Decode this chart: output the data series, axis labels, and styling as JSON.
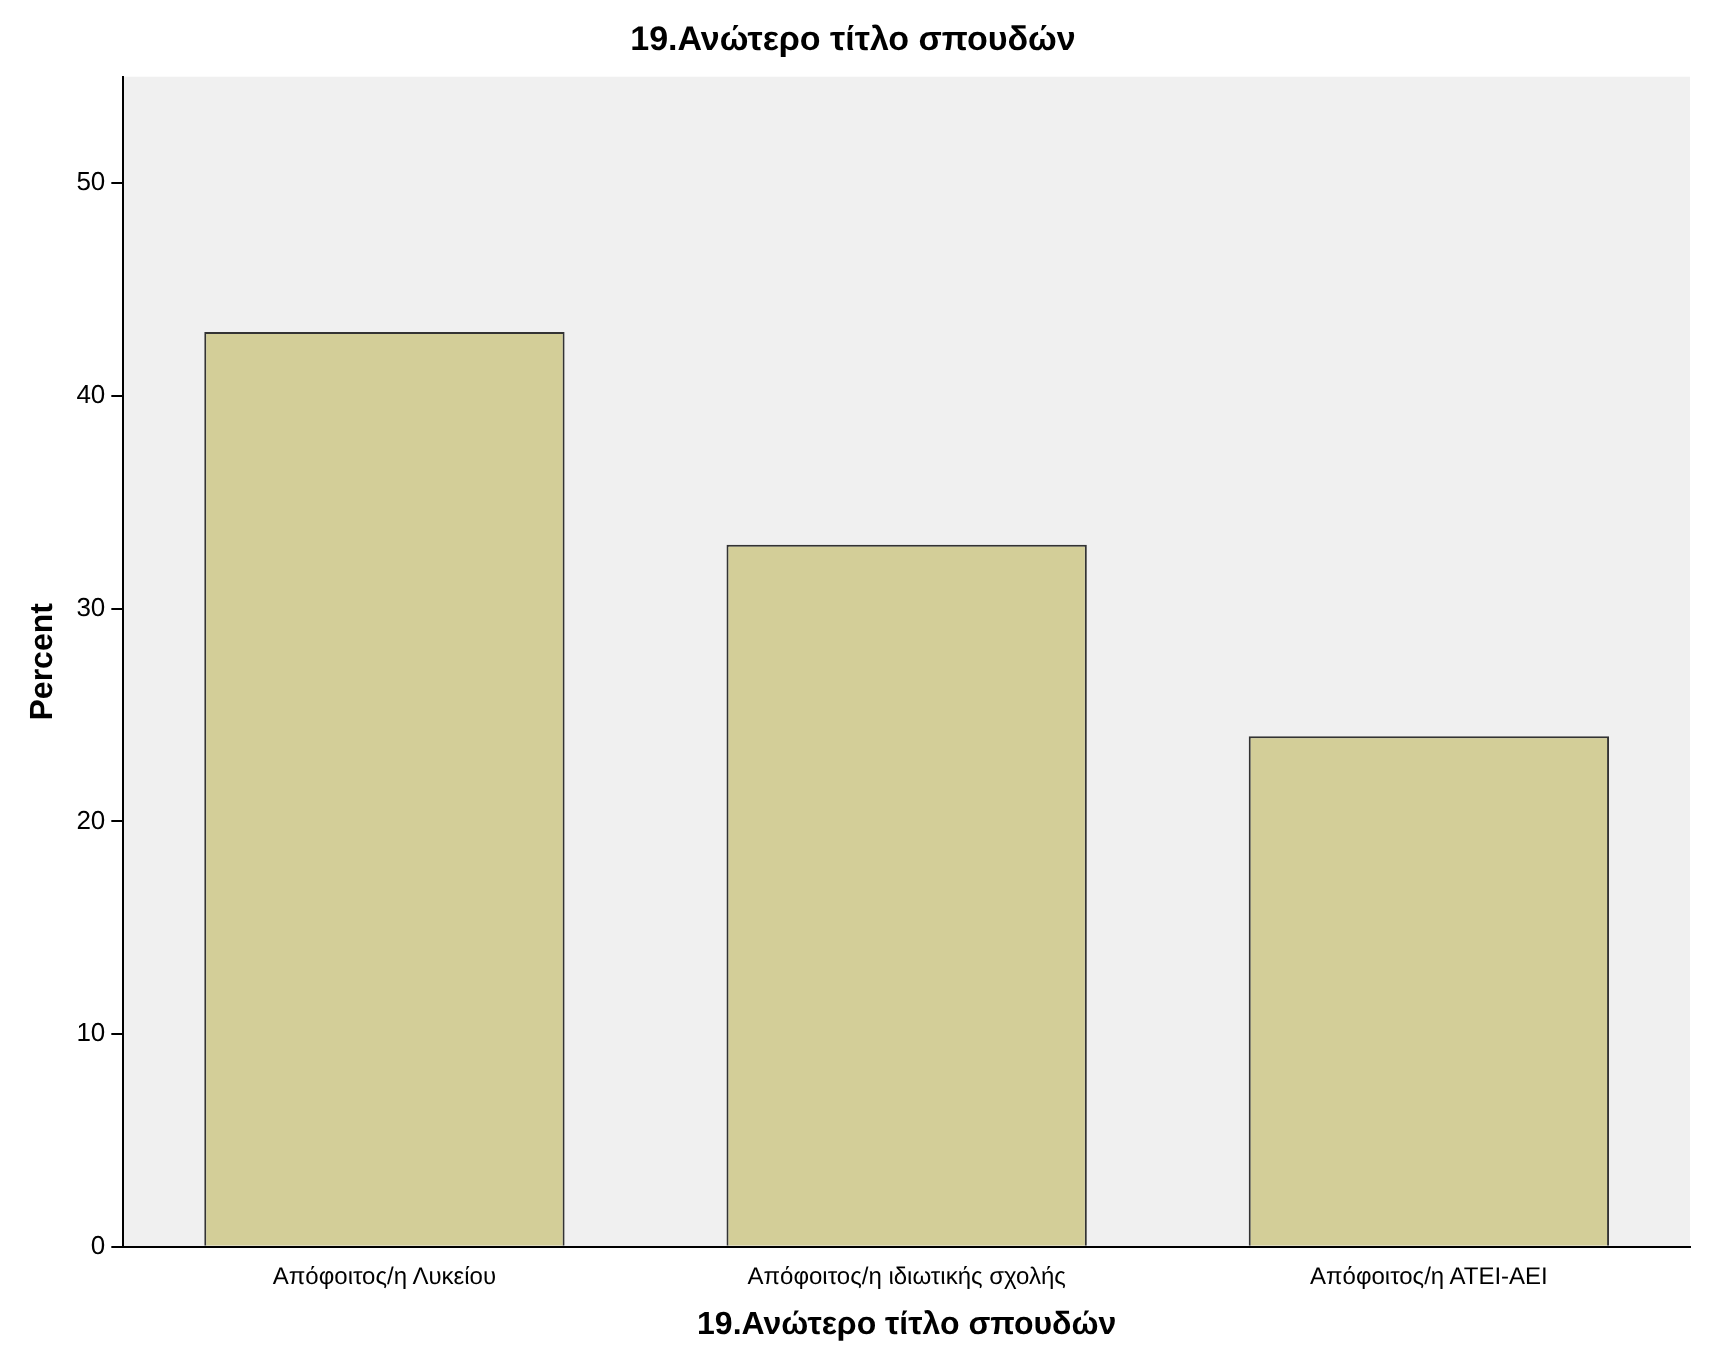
{
  "chart_data": {
    "type": "bar",
    "title": "19.Ανώτερο τίτλο σπουδών",
    "xlabel": "19.Ανώτερο τίτλο σπουδών",
    "ylabel": "Percent",
    "categories": [
      "Απόφοιτος/η Λυκείου",
      "Απόφοιτος/η ιδιωτικής σχολής",
      "Απόφοιτος/η ΑΤΕΙ-ΑΕΙ"
    ],
    "values": [
      43,
      33,
      24
    ],
    "color": "#d3ce98",
    "ylim": [
      0,
      55
    ],
    "yticks": [
      0,
      10,
      20,
      30,
      40,
      50
    ],
    "grid": false,
    "legend": false
  }
}
